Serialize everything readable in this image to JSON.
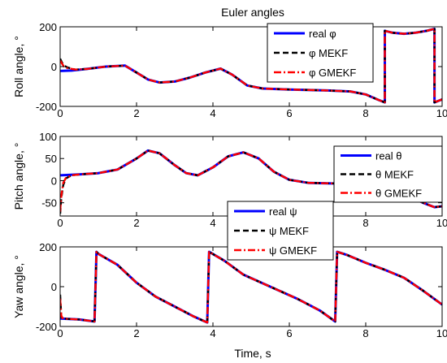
{
  "title": "Euler angles",
  "xlabel": "Time, s",
  "colors": {
    "real": "#0000ff",
    "mekf": "#000000",
    "gmekf": "#ff0000",
    "axes": "#000000"
  },
  "chart_data": [
    {
      "type": "line",
      "title": "Euler angles",
      "xlabel": "",
      "ylabel": "Roll angle, °",
      "xlim": [
        0,
        10
      ],
      "ylim": [
        -200,
        200
      ],
      "xticks": [
        0,
        2,
        4,
        6,
        8,
        10
      ],
      "yticks": [
        -200,
        0,
        200
      ],
      "legend": "top-right",
      "grid": false,
      "series": [
        {
          "name": "real φ",
          "style": "solid",
          "color": "#0000ff",
          "x": [
            0,
            0.3,
            0.7,
            1.2,
            1.7,
            2.0,
            2.3,
            2.6,
            3.0,
            3.4,
            3.8,
            4.2,
            4.5,
            4.9,
            5.3,
            6.0,
            7.0,
            7.6,
            8.0,
            8.3,
            8.5,
            8.5,
            8.7,
            9.0,
            9.3,
            9.6,
            9.8,
            9.8,
            10.0
          ],
          "y": [
            -22,
            -20,
            -12,
            0,
            5,
            -30,
            -65,
            -80,
            -75,
            -55,
            -30,
            -10,
            -40,
            -95,
            -110,
            -115,
            -120,
            -125,
            -140,
            -165,
            -180,
            180,
            170,
            165,
            170,
            180,
            190,
            -180,
            -165
          ]
        },
        {
          "name": "φ MEKF",
          "style": "dashed",
          "color": "#000000",
          "x": [
            0,
            0.05,
            0.1,
            0.2,
            0.4,
            0.7,
            1.2,
            1.7,
            2.0,
            2.3,
            2.6,
            3.0,
            3.4,
            3.8,
            4.2,
            4.5,
            4.9,
            5.3,
            6.0,
            7.0,
            7.6,
            8.0,
            8.3,
            8.5,
            8.5,
            8.7,
            9.0,
            9.3,
            9.6,
            9.8,
            9.8,
            10.0
          ],
          "y": [
            40,
            20,
            5,
            -5,
            -15,
            -12,
            0,
            5,
            -30,
            -65,
            -80,
            -75,
            -55,
            -30,
            -10,
            -40,
            -95,
            -110,
            -115,
            -120,
            -125,
            -140,
            -165,
            -180,
            180,
            170,
            165,
            170,
            180,
            190,
            -180,
            -165
          ]
        },
        {
          "name": "φ GMEKF",
          "style": "dashdot",
          "color": "#ff0000",
          "x": [
            0,
            0.05,
            0.1,
            0.2,
            0.4,
            0.7,
            1.2,
            1.7,
            2.0,
            2.3,
            2.6,
            3.0,
            3.4,
            3.8,
            4.2,
            4.5,
            4.9,
            5.3,
            6.0,
            7.0,
            7.6,
            8.0,
            8.3,
            8.5,
            8.5,
            8.7,
            9.0,
            9.3,
            9.6,
            9.8,
            9.8,
            10.0
          ],
          "y": [
            30,
            15,
            0,
            -8,
            -15,
            -12,
            0,
            5,
            -30,
            -65,
            -80,
            -75,
            -55,
            -30,
            -10,
            -40,
            -95,
            -110,
            -115,
            -120,
            -125,
            -140,
            -165,
            -180,
            180,
            170,
            165,
            170,
            180,
            190,
            -180,
            -165
          ]
        }
      ]
    },
    {
      "type": "line",
      "title": "",
      "xlabel": "",
      "ylabel": "Pitch angle, °",
      "xlim": [
        0,
        10
      ],
      "ylim": [
        -80,
        100
      ],
      "xticks": [
        0,
        2,
        4,
        6,
        8,
        10
      ],
      "yticks": [
        -50,
        0,
        50,
        100
      ],
      "legend": "top-right",
      "grid": false,
      "series": [
        {
          "name": "real θ",
          "style": "solid",
          "color": "#0000ff",
          "x": [
            0,
            0.5,
            1.0,
            1.5,
            2.0,
            2.3,
            2.6,
            3.0,
            3.3,
            3.6,
            4.0,
            4.4,
            4.8,
            5.2,
            5.6,
            6.0,
            6.5,
            7.0,
            7.5,
            8.0,
            8.5,
            9.0,
            9.5,
            9.8,
            10.0
          ],
          "y": [
            12,
            14,
            17,
            25,
            50,
            68,
            62,
            35,
            17,
            12,
            30,
            55,
            64,
            50,
            20,
            2,
            -5,
            -6,
            -7,
            -8,
            -15,
            -30,
            -50,
            -60,
            -58
          ]
        },
        {
          "name": "θ MEKF",
          "style": "dashed",
          "color": "#000000",
          "x": [
            0,
            0.03,
            0.08,
            0.15,
            0.3,
            0.5,
            1.0,
            1.5,
            2.0,
            2.3,
            2.6,
            3.0,
            3.3,
            3.6,
            4.0,
            4.4,
            4.8,
            5.2,
            5.6,
            6.0,
            6.5,
            7.0,
            7.5,
            8.0,
            8.5,
            9.0,
            9.5,
            9.8,
            10.0
          ],
          "y": [
            -75,
            -40,
            -10,
            5,
            12,
            14,
            17,
            25,
            50,
            68,
            62,
            35,
            17,
            12,
            30,
            55,
            64,
            50,
            20,
            2,
            -5,
            -6,
            -7,
            -8,
            -15,
            -30,
            -50,
            -60,
            -58
          ]
        },
        {
          "name": "θ GMEKF",
          "style": "dashdot",
          "color": "#ff0000",
          "x": [
            0,
            0.03,
            0.08,
            0.15,
            0.3,
            0.5,
            1.0,
            1.5,
            2.0,
            2.3,
            2.6,
            3.0,
            3.3,
            3.6,
            4.0,
            4.4,
            4.8,
            5.2,
            5.6,
            6.0,
            6.5,
            7.0,
            7.5,
            8.0,
            8.5,
            9.0,
            9.5,
            9.8,
            10.0
          ],
          "y": [
            -70,
            -35,
            -5,
            6,
            12,
            14,
            17,
            25,
            50,
            68,
            62,
            35,
            17,
            12,
            30,
            55,
            64,
            50,
            20,
            2,
            -5,
            -6,
            -7,
            -8,
            -15,
            -30,
            -50,
            -60,
            -58
          ]
        }
      ]
    },
    {
      "type": "line",
      "title": "",
      "xlabel": "Time, s",
      "ylabel": "Yaw angle, °",
      "xlim": [
        0,
        10
      ],
      "ylim": [
        -200,
        200
      ],
      "xticks": [
        0,
        2,
        4,
        6,
        8,
        10
      ],
      "yticks": [
        -200,
        0,
        200
      ],
      "legend": "upper-center",
      "grid": false,
      "series": [
        {
          "name": "real ψ",
          "style": "solid",
          "color": "#0000ff",
          "x": [
            0,
            0.5,
            0.9,
            0.95,
            1.0,
            1.5,
            2.0,
            2.5,
            3.0,
            3.5,
            3.85,
            3.9,
            4.3,
            4.8,
            5.5,
            6.2,
            6.8,
            7.2,
            7.25,
            7.5,
            8.0,
            8.5,
            9.0,
            9.5,
            10.0
          ],
          "y": [
            -160,
            -165,
            -175,
            175,
            165,
            110,
            20,
            -50,
            -100,
            -150,
            -180,
            175,
            130,
            60,
            0,
            -60,
            -120,
            -175,
            175,
            160,
            120,
            85,
            45,
            -20,
            -90
          ]
        },
        {
          "name": "ψ MEKF",
          "style": "dashed",
          "color": "#000000",
          "x": [
            0,
            0.03,
            0.06,
            0.2,
            0.5,
            0.9,
            0.95,
            1.0,
            1.5,
            2.0,
            2.5,
            3.0,
            3.5,
            3.85,
            3.9,
            4.3,
            4.8,
            5.5,
            6.2,
            6.8,
            7.2,
            7.25,
            7.5,
            8.0,
            8.5,
            9.0,
            9.5,
            10.0
          ],
          "y": [
            -40,
            -150,
            -160,
            -162,
            -165,
            -175,
            175,
            165,
            110,
            20,
            -50,
            -100,
            -150,
            -180,
            175,
            130,
            60,
            0,
            -60,
            -120,
            -175,
            175,
            160,
            120,
            85,
            45,
            -20,
            -90
          ]
        },
        {
          "name": "ψ GMEKF",
          "style": "dashdot",
          "color": "#ff0000",
          "x": [
            0,
            0.03,
            0.06,
            0.2,
            0.5,
            0.9,
            0.95,
            1.0,
            1.5,
            2.0,
            2.5,
            3.0,
            3.5,
            3.85,
            3.9,
            4.3,
            4.8,
            5.5,
            6.2,
            6.8,
            7.2,
            7.25,
            7.5,
            8.0,
            8.5,
            9.0,
            9.5,
            10.0
          ],
          "y": [
            -60,
            -145,
            -158,
            -162,
            -165,
            -175,
            175,
            165,
            110,
            20,
            -50,
            -100,
            -150,
            -180,
            175,
            130,
            60,
            0,
            -60,
            -120,
            -175,
            175,
            160,
            120,
            85,
            45,
            -20,
            -90
          ]
        }
      ]
    }
  ]
}
